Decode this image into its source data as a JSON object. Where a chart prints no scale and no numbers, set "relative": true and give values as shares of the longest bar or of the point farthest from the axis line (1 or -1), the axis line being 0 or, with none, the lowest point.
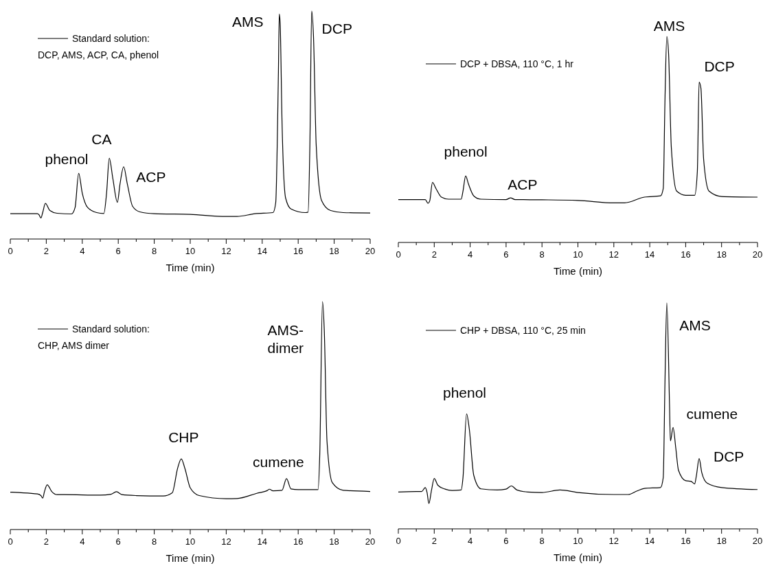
{
  "chart_data": [
    {
      "type": "line",
      "relative": true,
      "xlim": [
        0,
        20
      ],
      "xticks": [
        0,
        {
          "value": 1,
          "label": null
        },
        2,
        {
          "value": 3,
          "label": null
        },
        4,
        {
          "value": 5,
          "label": null
        },
        6,
        {
          "value": 7,
          "label": null
        },
        8,
        {
          "value": 9,
          "label": null
        },
        10,
        {
          "value": 11,
          "label": null
        },
        12,
        {
          "value": 13,
          "label": null
        },
        14,
        {
          "value": 15,
          "label": null
        },
        16,
        {
          "value": 17,
          "label": null
        },
        18,
        {
          "value": 19,
          "label": null
        },
        20
      ],
      "xlabel": "Time (min)",
      "legend": "top left",
      "series": [
        {
          "name": "Standard solution:\nDCP, AMS, ACP, CA, phenol",
          "color": "#000000",
          "x": [
            0,
            1.5,
            1.6,
            1.7,
            1.8,
            1.95,
            2.2,
            2.6,
            3.4,
            3.6,
            3.8,
            4.0,
            4.3,
            4.8,
            5.2,
            5.35,
            5.5,
            5.7,
            5.95,
            6.1,
            6.3,
            6.5,
            6.8,
            7.2,
            8,
            10,
            12,
            12.6,
            13.6,
            14.6,
            14.75,
            14.9,
            14.95,
            15.0,
            15.1,
            15.3,
            15.6,
            16.4,
            16.55,
            16.65,
            16.75,
            16.85,
            17.0,
            17.3,
            17.8,
            18.5,
            20
          ],
          "values": [
            0.111,
            0.111,
            0.106,
            0.092,
            0.116,
            0.156,
            0.125,
            0.113,
            0.11,
            0.138,
            0.288,
            0.201,
            0.138,
            0.116,
            0.112,
            0.201,
            0.354,
            0.265,
            0.161,
            0.243,
            0.317,
            0.243,
            0.143,
            0.119,
            0.111,
            0.108,
            0.099,
            0.099,
            0.111,
            0.116,
            0.159,
            0.73,
            0.987,
            0.942,
            0.519,
            0.18,
            0.132,
            0.116,
            0.118,
            0.413,
            1,
            0.889,
            0.413,
            0.169,
            0.125,
            0.116,
            0.114
          ]
        }
      ],
      "annotations": [
        "phenol",
        "CA",
        "ACP",
        "AMS",
        "DCP"
      ]
    },
    {
      "type": "line",
      "relative": true,
      "xlim": [
        0,
        20
      ],
      "xticks": [
        0,
        {
          "value": 1,
          "label": null
        },
        2,
        {
          "value": 3,
          "label": null
        },
        4,
        {
          "value": 5,
          "label": null
        },
        6,
        {
          "value": 7,
          "label": null
        },
        8,
        {
          "value": 9,
          "label": null
        },
        10,
        {
          "value": 11,
          "label": null
        },
        12,
        {
          "value": 13,
          "label": null
        },
        14,
        {
          "value": 15,
          "label": null
        },
        16,
        {
          "value": 17,
          "label": null
        },
        18,
        {
          "value": 19,
          "label": null
        },
        20
      ],
      "xlabel": "Time (min)",
      "legend": "top left",
      "series": [
        {
          "name": "DCP + DBSA, 110 °C, 1 hr",
          "color": "#000000",
          "x": [
            0,
            0.5,
            1,
            1.5,
            1.65,
            1.75,
            1.9,
            2.1,
            2.4,
            2.8,
            3.5,
            3.6,
            3.75,
            3.9,
            4.2,
            4.6,
            6,
            6.25,
            6.5,
            8,
            10,
            12,
            12.6,
            13.7,
            14.6,
            14.75,
            14.85,
            14.95,
            15.05,
            15.2,
            15.5,
            16,
            16.5,
            16.65,
            16.75,
            16.85,
            17.0,
            17.3,
            18,
            20
          ],
          "values": [
            0.208,
            0.208,
            0.208,
            0.208,
            0.19,
            0.202,
            0.291,
            0.261,
            0.22,
            0.21,
            0.21,
            0.249,
            0.323,
            0.285,
            0.226,
            0.21,
            0.208,
            0.216,
            0.208,
            0.207,
            0.204,
            0.192,
            0.192,
            0.22,
            0.226,
            0.261,
            0.701,
            1,
            0.914,
            0.463,
            0.249,
            0.229,
            0.229,
            0.344,
            0.778,
            0.748,
            0.404,
            0.249,
            0.223,
            0.22
          ]
        }
      ],
      "annotations": [
        "phenol",
        "ACP",
        "AMS",
        "DCP"
      ]
    },
    {
      "type": "line",
      "relative": true,
      "xlim": [
        0,
        20
      ],
      "xticks": [
        0,
        {
          "value": 1,
          "label": null
        },
        2,
        {
          "value": 3,
          "label": null
        },
        4,
        {
          "value": 5,
          "label": null
        },
        6,
        {
          "value": 7,
          "label": null
        },
        8,
        {
          "value": 9,
          "label": null
        },
        10,
        {
          "value": 11,
          "label": null
        },
        12,
        {
          "value": 13,
          "label": null
        },
        14,
        {
          "value": 15,
          "label": null
        },
        16,
        {
          "value": 17,
          "label": null
        },
        18,
        {
          "value": 19,
          "label": null
        },
        20
      ],
      "xlabel": "Time (min)",
      "legend": "top left",
      "series": [
        {
          "name": "Standard solution:\nCHP, AMS dimer",
          "color": "#000000",
          "x": [
            0,
            0.5,
            1.5,
            1.7,
            1.8,
            1.9,
            2.05,
            2.3,
            2.6,
            3,
            5,
            5.6,
            5.9,
            6.2,
            7,
            8.5,
            9.0,
            9.3,
            9.5,
            9.7,
            10,
            10.5,
            12,
            12.6,
            13.7,
            14.3,
            14.4,
            14.6,
            15.1,
            15.35,
            15.6,
            16,
            17.1,
            17.2,
            17.35,
            17.45,
            17.6,
            17.9,
            18.5,
            20
          ],
          "values": [
            0.164,
            0.162,
            0.156,
            0.149,
            0.138,
            0.167,
            0.196,
            0.167,
            0.153,
            0.153,
            0.151,
            0.155,
            0.166,
            0.153,
            0.149,
            0.147,
            0.161,
            0.269,
            0.31,
            0.269,
            0.183,
            0.149,
            0.135,
            0.136,
            0.159,
            0.172,
            0.177,
            0.17,
            0.172,
            0.223,
            0.178,
            0.175,
            0.175,
            0.334,
            1,
            0.873,
            0.388,
            0.205,
            0.172,
            0.167
          ]
        }
      ],
      "annotations": [
        "CHP",
        "cumene",
        "AMS-\ndimer"
      ]
    },
    {
      "type": "line",
      "relative": true,
      "xlim": [
        0,
        20
      ],
      "xticks": [
        0,
        {
          "value": 1,
          "label": null
        },
        2,
        {
          "value": 3,
          "label": null
        },
        4,
        {
          "value": 5,
          "label": null
        },
        6,
        {
          "value": 7,
          "label": null
        },
        8,
        {
          "value": 9,
          "label": null
        },
        10,
        {
          "value": 11,
          "label": null
        },
        12,
        {
          "value": 13,
          "label": null
        },
        14,
        {
          "value": 15,
          "label": null
        },
        16,
        {
          "value": 17,
          "label": null
        },
        18,
        {
          "value": 19,
          "label": null
        },
        20
      ],
      "xlabel": "Time (min)",
      "legend": "top left",
      "series": [
        {
          "name": "CHP + DBSA, 110 °C, 25 min",
          "color": "#000000",
          "x": [
            0,
            1,
            1.3,
            1.5,
            1.6,
            1.7,
            1.85,
            2.0,
            2.2,
            2.6,
            3.0,
            3.5,
            3.6,
            3.8,
            3.95,
            4.2,
            4.6,
            5.5,
            6.0,
            6.3,
            6.6,
            7.2,
            8,
            9,
            10,
            12,
            12.8,
            13.3,
            13.7,
            14.6,
            14.75,
            14.85,
            14.95,
            15.1,
            15.15,
            15.3,
            15.45,
            15.6,
            16,
            16.3,
            16.5,
            16.6,
            16.75,
            16.9,
            17.2,
            18,
            20
          ],
          "values": [
            0.163,
            0.165,
            0.165,
            0.183,
            0.161,
            0.112,
            0.172,
            0.223,
            0.193,
            0.176,
            0.17,
            0.172,
            0.226,
            0.509,
            0.443,
            0.237,
            0.177,
            0.172,
            0.176,
            0.19,
            0.172,
            0.163,
            0.161,
            0.172,
            0.161,
            0.152,
            0.152,
            0.168,
            0.179,
            0.183,
            0.226,
            0.661,
            1,
            0.552,
            0.389,
            0.449,
            0.357,
            0.259,
            0.213,
            0.21,
            0.199,
            0.237,
            0.311,
            0.248,
            0.202,
            0.183,
            0.174
          ]
        }
      ],
      "annotations": [
        "phenol",
        "AMS",
        "cumene",
        "DCP"
      ]
    }
  ]
}
